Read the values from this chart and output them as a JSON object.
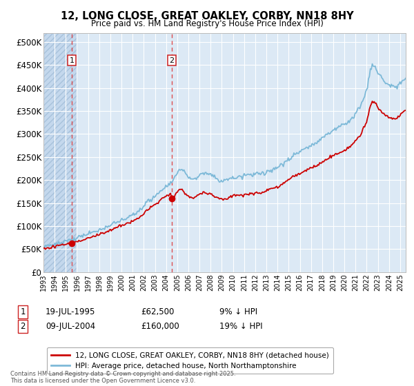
{
  "title_line1": "12, LONG CLOSE, GREAT OAKLEY, CORBY, NN18 8HY",
  "title_line2": "Price paid vs. HM Land Registry's House Price Index (HPI)",
  "ylim": [
    0,
    520000
  ],
  "yticks": [
    0,
    50000,
    100000,
    150000,
    200000,
    250000,
    300000,
    350000,
    400000,
    450000,
    500000
  ],
  "ytick_labels": [
    "£0",
    "£50K",
    "£100K",
    "£150K",
    "£200K",
    "£250K",
    "£300K",
    "£350K",
    "£400K",
    "£450K",
    "£500K"
  ],
  "purchase1_date": 1995.54,
  "purchase1_price": 62500,
  "purchase2_date": 2004.52,
  "purchase2_price": 160000,
  "hpi_color": "#7db9d8",
  "price_color": "#cc0000",
  "background_color": "#dce9f5",
  "grid_color": "#ffffff",
  "legend_label1": "12, LONG CLOSE, GREAT OAKLEY, CORBY, NN18 8HY (detached house)",
  "legend_label2": "HPI: Average price, detached house, North Northamptonshire",
  "footnote": "Contains HM Land Registry data © Crown copyright and database right 2025.\nThis data is licensed under the Open Government Licence v3.0.",
  "xmin": 1993,
  "xmax": 2025.5,
  "hatch_end": 1996.0
}
